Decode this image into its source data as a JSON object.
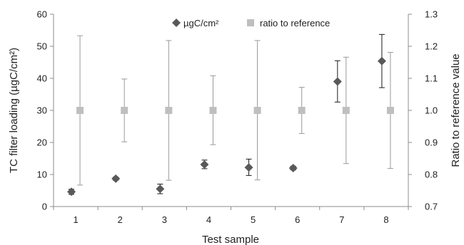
{
  "chart_data": {
    "type": "scatter",
    "xlabel": "Test sample",
    "ylabel_left": "TC filter loading (µgC/cm²)",
    "ylabel_right": "Ratio to reference value",
    "x": [
      1,
      2,
      3,
      4,
      5,
      6,
      7,
      8
    ],
    "x_ticks": [
      "1",
      "2",
      "3",
      "4",
      "5",
      "6",
      "7",
      "8"
    ],
    "xlim": [
      0.5,
      8.5
    ],
    "y_left_lim": [
      0,
      60
    ],
    "y_left_ticks": [
      0,
      10,
      20,
      30,
      40,
      50,
      60
    ],
    "y_right_lim": [
      0.7,
      1.3
    ],
    "y_right_ticks": [
      "0.7",
      "0.8",
      "0.9",
      "1.0",
      "1.1",
      "1.2",
      "1.3"
    ],
    "grid": false,
    "legend_position": "top-center",
    "series": [
      {
        "name": "µgC/cm²",
        "axis": "left",
        "marker": "diamond",
        "color": "#595959",
        "values": [
          4.6,
          8.7,
          5.5,
          13.1,
          12.2,
          12.0,
          39.0,
          45.4
        ],
        "err_low": [
          3.8,
          8.2,
          4.0,
          11.8,
          9.7,
          11.4,
          32.6,
          37.1
        ],
        "err_high": [
          5.4,
          9.2,
          7.0,
          14.5,
          14.8,
          12.6,
          45.5,
          53.7
        ]
      },
      {
        "name": "ratio to reference",
        "axis": "right",
        "marker": "square",
        "color": "#bfbfbf",
        "values": [
          1.0,
          1.0,
          1.0,
          1.0,
          1.0,
          1.0,
          1.0,
          1.0
        ],
        "err_low": [
          0.767,
          0.902,
          0.782,
          0.893,
          0.783,
          0.928,
          0.834,
          0.819
        ],
        "err_high": [
          1.233,
          1.098,
          1.218,
          1.108,
          1.218,
          1.072,
          1.166,
          1.181
        ]
      }
    ]
  }
}
